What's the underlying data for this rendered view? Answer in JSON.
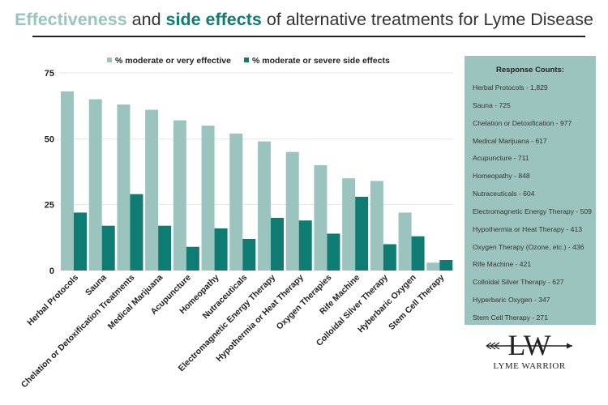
{
  "colors": {
    "effective": "#9cc4bf",
    "side_effects": "#0e7c72",
    "panel": "#9cc4bf"
  },
  "title": {
    "part1": "Effectiveness",
    "part2": " and ",
    "part3": "side effects",
    "part4": " of alternative treatments for Lyme Disease"
  },
  "chart_data": {
    "type": "bar",
    "title": "Effectiveness and side effects of alternative treatments for Lyme Disease",
    "categories": [
      "Herbal Protocols",
      "Sauna",
      "Chelation or Detoxification Treatments",
      "Medical Marijuana",
      "Acupuncture",
      "Homeopathy",
      "Nutraceuticals",
      "Electromagnetic Energy Therapy",
      "Hypothermia or Heat Therapy",
      "Oxygen Therapies",
      "Rife Machine",
      "Colloidal Silver Therapy",
      "Hyberbaric Oxygen",
      "Stem Cell Therapy"
    ],
    "series": [
      {
        "name": "% moderate or very effective",
        "values": [
          68,
          65,
          63,
          61,
          57,
          55,
          52,
          49,
          45,
          40,
          35,
          34,
          22,
          3
        ]
      },
      {
        "name": "% moderate or severe side effects",
        "values": [
          22,
          17,
          29,
          17,
          9,
          16,
          12,
          20,
          19,
          14,
          28,
          10,
          13,
          4
        ]
      }
    ],
    "ylim": [
      0,
      75
    ],
    "yticks": [
      0,
      25,
      50,
      75
    ],
    "grid": true,
    "legend_position": "top"
  },
  "panel": {
    "title": "Response Counts:",
    "items": [
      "Herbal Protocols - 1,829",
      "Sauna - 725",
      "Chelation or Detoxification - 977",
      "Medical Marijuana - 617",
      "Acupuncture - 711",
      "Homeopathy - 848",
      "Nutraceuticals - 604",
      "Electromagnetic Energy Therapy - 509",
      "Hypothermia or Heat Therapy - 413",
      "Oxygen Therapy (Ozone, etc.) - 436",
      "Rife Machine - 421",
      "Colloidal Silver Therapy - 627",
      "Hyperbaric Oxygen - 347",
      "Stem Cell Therapy - 271"
    ]
  },
  "logo": {
    "monogram": "LW",
    "name": "LYME WARRIOR"
  }
}
